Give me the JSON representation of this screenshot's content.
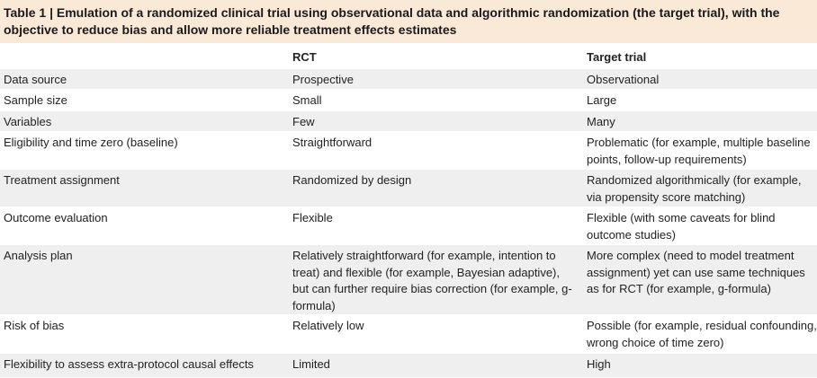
{
  "table": {
    "title": "Table 1 | Emulation of a randomized clinical trial using observational data and algorithmic randomization (the target trial), with the objective to reduce bias and allow more reliable treatment effects estimates",
    "columns": [
      "",
      "RCT",
      "Target trial"
    ],
    "rows": [
      [
        "Data source",
        "Prospective",
        "Observational"
      ],
      [
        "Sample size",
        "Small",
        "Large"
      ],
      [
        "Variables",
        "Few",
        "Many"
      ],
      [
        "Eligibility and time zero (baseline)",
        "Straightforward",
        "Problematic (for example, multiple baseline points, follow-up requirements)"
      ],
      [
        "Treatment assignment",
        "Randomized by design",
        "Randomized algorithmically (for example, via propensity score matching)"
      ],
      [
        "Outcome evaluation",
        "Flexible",
        "Flexible (with some caveats for blind outcome studies)"
      ],
      [
        "Analysis plan",
        "Relatively straightforward (for example, intention to treat) and flexible (for example, Bayesian adaptive), but can further require bias correction (for example, g-formula)",
        "More complex (need to model treatment assignment) yet can use same techniques as for RCT (for example, g-formula)"
      ],
      [
        "Risk of bias",
        "Relatively low",
        "Possible (for example, residual confounding, wrong choice of time zero)"
      ],
      [
        "Flexibility to assess extra-protocol causal effects",
        "Limited",
        "High"
      ]
    ]
  }
}
